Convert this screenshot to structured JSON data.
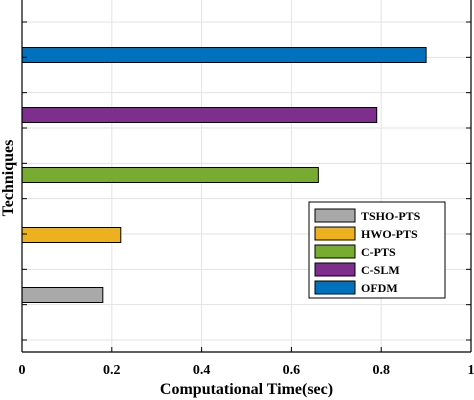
{
  "chart_data": {
    "type": "bar",
    "orientation": "horizontal",
    "title": "",
    "xlabel": "Computational Time(sec)",
    "ylabel": "Techniques",
    "xlim": [
      0,
      1
    ],
    "x_ticks": [
      "0",
      "0.2",
      "0.4",
      "0.6",
      "0.8",
      "1"
    ],
    "grid": true,
    "legend_position": "lower-right",
    "legend": [
      "TSHO-PTS",
      "HWO-PTS",
      "C-PTS",
      "C-SLM",
      "OFDM"
    ],
    "series": [
      {
        "name": "OFDM",
        "value": 0.9,
        "color": "#0072BD"
      },
      {
        "name": "C-SLM",
        "value": 0.79,
        "color": "#7E2F8E"
      },
      {
        "name": "C-PTS",
        "value": 0.66,
        "color": "#77AC30"
      },
      {
        "name": "HWO-PTS",
        "value": 0.22,
        "color": "#EDB120"
      },
      {
        "name": "TSHO-PTS",
        "value": 0.18,
        "color": "#A9A9A9"
      }
    ]
  }
}
